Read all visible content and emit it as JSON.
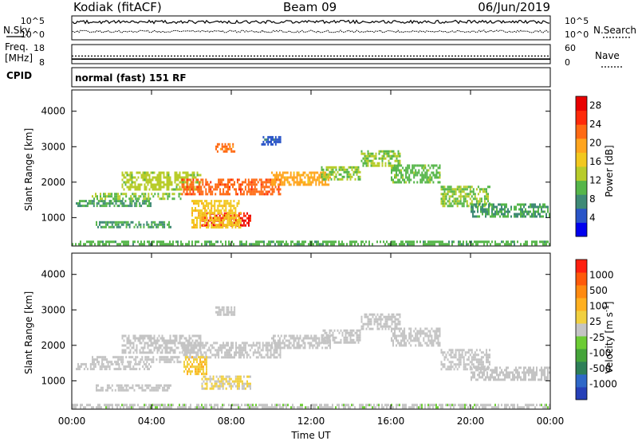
{
  "header": {
    "station": "Kodiak (fitACF)",
    "beam": "Beam 09",
    "date": "06/Jun/2019"
  },
  "top_panels": {
    "nsky_label": "N.Sky",
    "nsky_ticks": [
      "10^5",
      "10^0"
    ],
    "nsearch_label": "N.Search",
    "nsearch_ticks": [
      "10^5",
      "10^0"
    ],
    "freq_label_1": "Freq.",
    "freq_label_2": "[MHz]",
    "freq_ticks": [
      "18",
      "8"
    ],
    "nave_label": "Nave",
    "nave_ticks": [
      "60",
      "0"
    ],
    "cpid_label": "CPID",
    "cpid_text": "normal (fast) 151 RF",
    "series": {
      "nsky_level": 0.75,
      "nsearch_level": 0.35,
      "freq_mhz": 10.4,
      "nave": 24
    }
  },
  "x_axis": {
    "label": "Time UT",
    "ticks": [
      "00:00",
      "04:00",
      "08:00",
      "12:00",
      "16:00",
      "20:00",
      "00:00"
    ],
    "range_hours": [
      0,
      24
    ]
  },
  "chart_data": [
    {
      "type": "heatmap",
      "name": "power",
      "ylabel": "Slant Range [km]",
      "yticks": [
        "1000",
        "2000",
        "3000",
        "4000"
      ],
      "ylim": [
        200,
        4600
      ],
      "xlim_hours": [
        0,
        24
      ],
      "colorbar": {
        "label": "Power [dB]",
        "ticks": [
          "4",
          "8",
          "12",
          "16",
          "20",
          "24",
          "28"
        ],
        "range": [
          0,
          30
        ],
        "colors": [
          "#0000ee",
          "#2a55c8",
          "#3f8a76",
          "#56b64a",
          "#b8cc2a",
          "#f2c81e",
          "#ffa51e",
          "#ff6a14",
          "#ff2a0a",
          "#e80000"
        ]
      },
      "regions": [
        {
          "x": [
            0.0,
            24.0
          ],
          "y": [
            250,
            350
          ],
          "value": 10
        },
        {
          "x": [
            0.2,
            4.0
          ],
          "y": [
            1350,
            1500
          ],
          "value": 9
        },
        {
          "x": [
            1.0,
            5.5
          ],
          "y": [
            1550,
            1700
          ],
          "value": 12
        },
        {
          "x": [
            1.2,
            5.0
          ],
          "y": [
            700,
            900
          ],
          "value": 9
        },
        {
          "x": [
            2.5,
            6.5
          ],
          "y": [
            1800,
            2300
          ],
          "value": 13
        },
        {
          "x": [
            5.5,
            10.5
          ],
          "y": [
            1650,
            2100
          ],
          "value": 23
        },
        {
          "x": [
            6.5,
            9.0
          ],
          "y": [
            800,
            1150
          ],
          "value": 27
        },
        {
          "x": [
            6.0,
            8.5
          ],
          "y": [
            700,
            1500
          ],
          "value": 17
        },
        {
          "x": [
            7.2,
            8.2
          ],
          "y": [
            2850,
            3100
          ],
          "value": 22
        },
        {
          "x": [
            9.5,
            10.5
          ],
          "y": [
            3050,
            3300
          ],
          "value": 5
        },
        {
          "x": [
            10.0,
            13.0
          ],
          "y": [
            1900,
            2300
          ],
          "value": 19
        },
        {
          "x": [
            12.5,
            14.5
          ],
          "y": [
            2100,
            2450
          ],
          "value": 12
        },
        {
          "x": [
            14.5,
            16.5
          ],
          "y": [
            2450,
            2900
          ],
          "value": 12
        },
        {
          "x": [
            16.0,
            18.5
          ],
          "y": [
            2000,
            2500
          ],
          "value": 11
        },
        {
          "x": [
            18.5,
            21.0
          ],
          "y": [
            1300,
            1900
          ],
          "value": 12
        },
        {
          "x": [
            20.0,
            24.0
          ],
          "y": [
            1000,
            1400
          ],
          "value": 9
        }
      ]
    },
    {
      "type": "heatmap",
      "name": "velocity",
      "ylabel": "Slant Range [km]",
      "yticks": [
        "1000",
        "2000",
        "3000",
        "4000"
      ],
      "ylim": [
        200,
        4600
      ],
      "xlim_hours": [
        0,
        24
      ],
      "colorbar": {
        "label": "Velocity [m s^-1]",
        "ticks": [
          "1000",
          "500",
          "100",
          "25",
          "-25",
          "-100",
          "-500",
          "-1000"
        ],
        "range": [
          -1200,
          1200
        ],
        "colors": [
          "#2640b8",
          "#2f68c8",
          "#2e7f58",
          "#45a43a",
          "#6ccc34",
          "#c4c4c4",
          "#f1d040",
          "#ffb020",
          "#ff8a10",
          "#ff5a0a",
          "#ff2010"
        ]
      },
      "regions": [
        {
          "x": [
            0.0,
            24.0
          ],
          "y": [
            250,
            350
          ],
          "value": -40
        },
        {
          "x": [
            0.2,
            4.0
          ],
          "y": [
            1350,
            1500
          ],
          "value": 0
        },
        {
          "x": [
            1.0,
            5.5
          ],
          "y": [
            1550,
            1700
          ],
          "value": 0
        },
        {
          "x": [
            1.2,
            5.0
          ],
          "y": [
            700,
            900
          ],
          "value": 0
        },
        {
          "x": [
            2.5,
            6.5
          ],
          "y": [
            1800,
            2300
          ],
          "value": 0
        },
        {
          "x": [
            5.5,
            10.5
          ],
          "y": [
            1650,
            2100
          ],
          "value": 0
        },
        {
          "x": [
            6.5,
            9.0
          ],
          "y": [
            800,
            1150
          ],
          "value": 130
        },
        {
          "x": [
            5.6,
            6.8
          ],
          "y": [
            1200,
            1700
          ],
          "value": 300
        },
        {
          "x": [
            7.2,
            8.2
          ],
          "y": [
            2850,
            3100
          ],
          "value": 0
        },
        {
          "x": [
            10.0,
            13.0
          ],
          "y": [
            1900,
            2300
          ],
          "value": 0
        },
        {
          "x": [
            12.5,
            14.5
          ],
          "y": [
            2100,
            2450
          ],
          "value": 0
        },
        {
          "x": [
            14.5,
            16.5
          ],
          "y": [
            2450,
            2900
          ],
          "value": 0
        },
        {
          "x": [
            16.0,
            18.5
          ],
          "y": [
            2000,
            2500
          ],
          "value": 0
        },
        {
          "x": [
            18.5,
            21.0
          ],
          "y": [
            1300,
            1900
          ],
          "value": 0
        },
        {
          "x": [
            20.0,
            24.0
          ],
          "y": [
            1000,
            1400
          ],
          "value": 0
        }
      ]
    }
  ]
}
